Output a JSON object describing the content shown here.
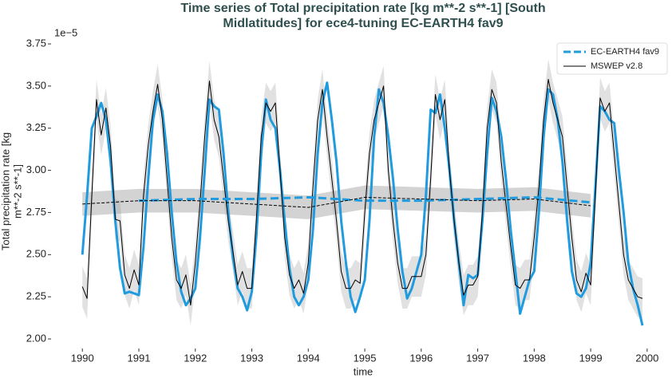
{
  "chart_data": {
    "type": "line",
    "title": [
      "Time series of Total precipitation rate [kg m**-2 s**-1] [South",
      "Midlatitudes] for ece4-tuning EC-EARTH4 fav9"
    ],
    "x_label": "time",
    "y_label": [
      "Total precipitation rate [kg",
      "m**-2 s**-1]"
    ],
    "y_offset_text": "1e−5",
    "xlim": [
      1989.46,
      2000.44
    ],
    "ylim": [
      1.94,
      3.78
    ],
    "xticks": [
      1990,
      1991,
      1992,
      1993,
      1994,
      1995,
      1996,
      1997,
      1998,
      1999,
      2000
    ],
    "yticks": [
      {
        "value": 2.0,
        "label": "2.00"
      },
      {
        "value": 2.25,
        "label": "2.25"
      },
      {
        "value": 2.5,
        "label": "2.50"
      },
      {
        "value": 2.75,
        "label": "2.75"
      },
      {
        "value": 3.0,
        "label": "3.00"
      },
      {
        "value": 3.25,
        "label": "3.25"
      },
      {
        "value": 3.5,
        "label": "3.50"
      },
      {
        "value": 3.75,
        "label": "3.75"
      }
    ],
    "grid": false,
    "legend": "upper right",
    "x": [
      1990.0,
      1990.083,
      1990.167,
      1990.25,
      1990.333,
      1990.417,
      1990.5,
      1990.583,
      1990.667,
      1990.75,
      1990.833,
      1990.917,
      1991.0,
      1991.083,
      1991.167,
      1991.25,
      1991.333,
      1991.417,
      1991.5,
      1991.583,
      1991.667,
      1991.75,
      1991.833,
      1991.917,
      1992.0,
      1992.083,
      1992.167,
      1992.25,
      1992.333,
      1992.417,
      1992.5,
      1992.583,
      1992.667,
      1992.75,
      1992.833,
      1992.917,
      1993.0,
      1993.083,
      1993.167,
      1993.25,
      1993.333,
      1993.417,
      1993.5,
      1993.583,
      1993.667,
      1993.75,
      1993.833,
      1993.917,
      1994.0,
      1994.083,
      1994.167,
      1994.25,
      1994.333,
      1994.417,
      1994.5,
      1994.583,
      1994.667,
      1994.75,
      1994.833,
      1994.917,
      1995.0,
      1995.083,
      1995.167,
      1995.25,
      1995.333,
      1995.417,
      1995.5,
      1995.583,
      1995.667,
      1995.75,
      1995.833,
      1995.917,
      1996.0,
      1996.083,
      1996.167,
      1996.25,
      1996.333,
      1996.417,
      1996.5,
      1996.583,
      1996.667,
      1996.75,
      1996.833,
      1996.917,
      1997.0,
      1997.083,
      1997.167,
      1997.25,
      1997.333,
      1997.417,
      1997.5,
      1997.583,
      1997.667,
      1997.75,
      1997.833,
      1997.917,
      1998.0,
      1998.083,
      1998.167,
      1998.25,
      1998.333,
      1998.417,
      1998.5,
      1998.583,
      1998.667,
      1998.75,
      1998.833,
      1998.917,
      1999.0,
      1999.083,
      1999.167,
      1999.25,
      1999.333,
      1999.417,
      1999.5,
      1999.583,
      1999.667,
      1999.75,
      1999.833,
      1999.917
    ],
    "series": [
      {
        "name": "EC-EARTH4 fav9",
        "color": "#1f9bde",
        "width": 3,
        "values": [
          2.5,
          2.85,
          3.25,
          3.32,
          3.4,
          3.3,
          3.05,
          2.7,
          2.42,
          2.27,
          2.28,
          2.27,
          2.26,
          2.55,
          2.95,
          3.3,
          3.45,
          3.35,
          3.1,
          2.75,
          2.45,
          2.28,
          2.2,
          2.24,
          2.3,
          2.6,
          3.0,
          3.42,
          3.38,
          3.36,
          3.1,
          2.75,
          2.48,
          2.3,
          2.25,
          2.17,
          2.28,
          2.62,
          3.1,
          3.42,
          3.3,
          3.25,
          3.0,
          2.7,
          2.42,
          2.25,
          2.2,
          2.25,
          2.35,
          2.65,
          3.1,
          3.4,
          3.52,
          3.3,
          3.05,
          2.7,
          2.45,
          2.25,
          2.16,
          2.25,
          2.35,
          2.7,
          3.2,
          3.48,
          3.4,
          3.2,
          2.95,
          2.65,
          2.4,
          2.24,
          2.3,
          2.4,
          2.5,
          2.85,
          3.36,
          3.34,
          3.45,
          3.25,
          3.0,
          2.7,
          2.45,
          2.2,
          2.38,
          2.36,
          2.38,
          2.7,
          3.1,
          3.43,
          3.35,
          3.2,
          2.95,
          2.65,
          2.4,
          2.15,
          2.25,
          2.35,
          2.4,
          2.75,
          3.2,
          3.48,
          3.45,
          3.3,
          3.05,
          2.7,
          2.4,
          2.27,
          2.25,
          2.3,
          2.45,
          2.9,
          3.38,
          3.35,
          3.3,
          3.28,
          3.0,
          2.75,
          2.45,
          2.3,
          2.2,
          2.08
        ],
        "spread": 0.12,
        "running_mean": {
          "x": [
            1991,
            1992,
            1993,
            1994,
            1995,
            1996,
            1997,
            1998,
            1999
          ],
          "values": [
            2.82,
            2.83,
            2.83,
            2.84,
            2.82,
            2.82,
            2.83,
            2.84,
            2.81
          ]
        }
      },
      {
        "name": "MSWEP v2.8",
        "color": "#000000",
        "width": 1,
        "values": [
          2.31,
          2.24,
          2.85,
          3.42,
          3.21,
          3.37,
          3.14,
          2.71,
          2.7,
          2.38,
          2.3,
          2.41,
          2.32,
          2.85,
          3.15,
          3.35,
          3.51,
          3.3,
          2.95,
          2.6,
          2.35,
          2.3,
          2.38,
          2.2,
          2.45,
          2.8,
          3.2,
          3.53,
          3.3,
          3.2,
          2.95,
          2.7,
          2.52,
          2.32,
          2.4,
          2.3,
          2.3,
          2.72,
          3.2,
          3.4,
          3.35,
          3.4,
          3.0,
          2.6,
          2.38,
          2.3,
          2.35,
          2.27,
          2.45,
          2.9,
          3.3,
          3.48,
          3.2,
          2.95,
          2.7,
          2.4,
          2.3,
          2.3,
          2.35,
          2.33,
          2.75,
          3.1,
          3.3,
          3.4,
          3.5,
          3.0,
          2.7,
          2.45,
          2.3,
          2.3,
          2.37,
          2.37,
          2.37,
          2.5,
          2.95,
          3.45,
          3.3,
          3.42,
          3.0,
          2.7,
          2.45,
          2.26,
          2.32,
          2.32,
          2.37,
          2.75,
          3.25,
          3.48,
          3.4,
          3.05,
          2.8,
          2.55,
          2.32,
          2.3,
          2.35,
          2.35,
          2.6,
          2.9,
          3.3,
          3.54,
          3.4,
          3.3,
          3.2,
          2.9,
          2.6,
          2.35,
          2.28,
          2.39,
          2.32,
          2.85,
          3.43,
          3.35,
          3.4,
          3.1,
          2.8,
          2.5,
          2.35,
          2.3,
          2.25,
          2.24
        ],
        "spread": 0.12,
        "running_mean": {
          "x": [
            1990,
            1991,
            1992,
            1993,
            1994,
            1995,
            1996,
            1997,
            1998,
            1999
          ],
          "values": [
            2.8,
            2.82,
            2.82,
            2.8,
            2.78,
            2.84,
            2.83,
            2.82,
            2.83,
            2.79
          ],
          "spread": 0.07
        }
      }
    ]
  }
}
